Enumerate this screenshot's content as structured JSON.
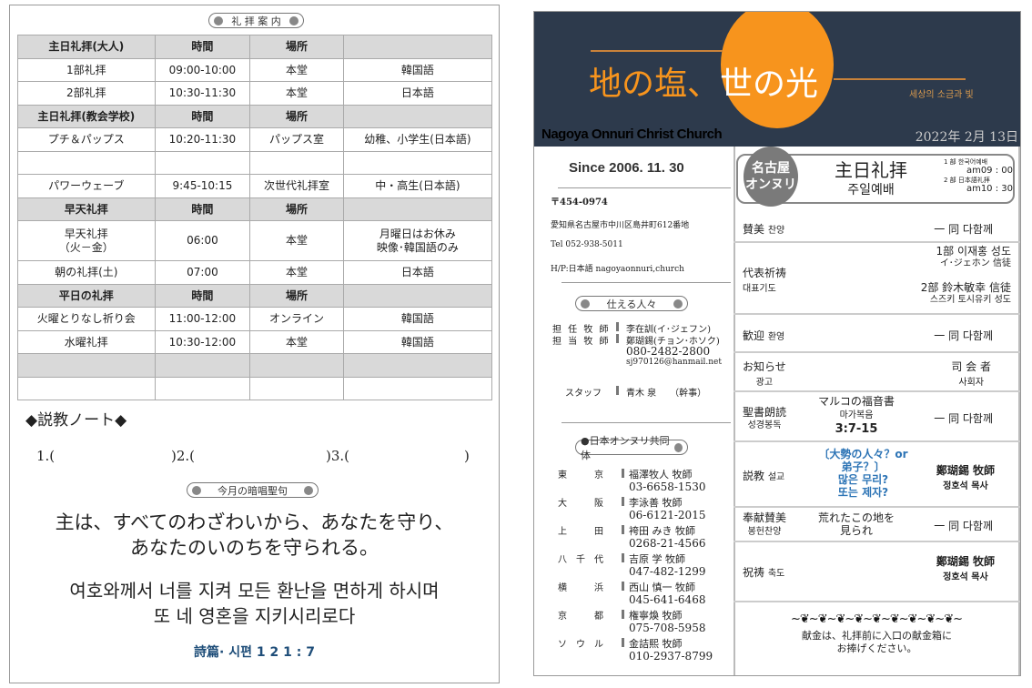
{
  "left": {
    "guide_title": "礼 拝 案 内",
    "schedule": [
      {
        "type": "hd",
        "cells": [
          "主日礼拝(大人)",
          "時間",
          "場所",
          ""
        ]
      },
      {
        "type": "",
        "cells": [
          "1部礼拝",
          "09:00-10:00",
          "本堂",
          "韓国語"
        ]
      },
      {
        "type": "",
        "cells": [
          "2部礼拝",
          "10:30-11:30",
          "本堂",
          "日本語"
        ]
      },
      {
        "type": "hd",
        "cells": [
          "主日礼拝(教会学校)",
          "時間",
          "場所",
          ""
        ]
      },
      {
        "type": "",
        "cells": [
          "プチ＆パップス",
          "10:20-11:30",
          "パップス室",
          "幼稚、小学生(日本語)"
        ]
      },
      {
        "type": "",
        "cells": [
          "",
          "",
          "",
          ""
        ]
      },
      {
        "type": "",
        "cells": [
          "パワーウェーブ",
          "9:45-10:15",
          "次世代礼拝室",
          "中・高生(日本語)"
        ]
      },
      {
        "type": "hd",
        "cells": [
          "早天礼拝",
          "時間",
          "場所",
          ""
        ]
      },
      {
        "type": "tall",
        "cells": [
          "早天礼拝\n（火－金）",
          "06:00",
          "本堂",
          "月曜日はお休み\n映像･韓国語のみ"
        ]
      },
      {
        "type": "",
        "cells": [
          "朝の礼拝(土)",
          "07:00",
          "本堂",
          "日本語"
        ]
      },
      {
        "type": "hd",
        "cells": [
          "平日の礼拝",
          "時間",
          "場所",
          ""
        ]
      },
      {
        "type": "",
        "cells": [
          "火曜とりなし祈り会",
          "11:00-12:00",
          "オンライン",
          "韓国語"
        ]
      },
      {
        "type": "",
        "cells": [
          "水曜礼拝",
          "10:30-12:00",
          "本堂",
          "韓国語"
        ]
      },
      {
        "type": "gray",
        "cells": [
          "",
          "",
          "",
          ""
        ]
      },
      {
        "type": "",
        "cells": [
          "",
          "",
          "",
          ""
        ]
      }
    ],
    "sermon_note_title": "◆説教ノート◆",
    "note_blanks": [
      "1.(",
      ")2.(",
      ")3.(",
      ")"
    ],
    "memory_verse_title": "今月の暗唱聖句",
    "verse_ja": [
      "主は、すべてのわざわいから、あなたを守り、",
      "あなたのいのちを守られる。"
    ],
    "verse_ko": [
      "여호와께서 너를 지켜 모든 환난을 면하게 하시며",
      "또 네 영혼을 지키시리로다"
    ],
    "verse_ref": "詩篇· 시편  1 2 1 : 7",
    "verse_ref_color": "#1f4e79"
  },
  "right": {
    "banner": {
      "title_part1": "地の塩、",
      "title_part2": "世の",
      "title_part3": "光",
      "subtitle_ko": "세상의 소금과 빛",
      "church_name": "Nagoya Onnuri Christ Church",
      "date": "2022年 2月 13日",
      "bg_color": "#2d3a4c",
      "accent_color": "#f7941d"
    },
    "since": "Since 2006. 11. 30",
    "postal": "〒454-0974",
    "address": "愛知県名古屋市中川区島井町612番地",
    "tel": "Tel  052-938-5011",
    "homepage": "H/P:日本語   nagoyaonnuri,church",
    "servants_title": "仕える人々",
    "servants": [
      {
        "role": "担 任 牧 師",
        "lines": [
          "李在訓(イ･ジェフン)"
        ]
      },
      {
        "role": "担 当 牧 師",
        "lines": [
          "鄭瑚錫(チョン･ホソク)",
          "080-2482-2800",
          "sj970126@hanmail.net"
        ]
      },
      {
        "role": "スタッフ",
        "lines": [
          "青木 泉　　（幹事）"
        ]
      }
    ],
    "community_title": "●日本オンヌリ共同体",
    "community": [
      {
        "city": "東　　　京",
        "pastor": "福澤牧人 牧師",
        "phone": "03-6658-1530"
      },
      {
        "city": "大　　　阪",
        "pastor": "李泳善 牧師",
        "phone": "06-6121-2015"
      },
      {
        "city": "上　　　田",
        "pastor": "袴田 みき 牧師",
        "phone": "0268-21-4566"
      },
      {
        "city": "八　千　代",
        "pastor": "吉原 学 牧師",
        "phone": "047-482-1299"
      },
      {
        "city": "横　　　浜",
        "pastor": "西山 慎一 牧師",
        "phone": "045-641-6468"
      },
      {
        "city": "京　　　都",
        "pastor": "権寧煥 牧師",
        "phone": "075-708-5958"
      },
      {
        "city": "ソ　ウ　ル",
        "pastor": "金詰熙 牧師",
        "phone": "010-2937-8799"
      }
    ],
    "service_header": {
      "badge": [
        "名古屋",
        "オンヌリ"
      ],
      "title_ja": "主日礼拝",
      "title_ko": "주일예배",
      "part1_label": "1 部 한국어예배",
      "part1_time": "am09 : 00",
      "part2_label": "2 部 日本語礼拝",
      "part2_time": "am10 : 30"
    },
    "order": {
      "praise": {
        "ja": "賛美",
        "ko": "찬양",
        "right": "一 同 다함께"
      },
      "prayer": {
        "ja": "代表祈祷",
        "ko": "대표기도",
        "p1": "1部 이재홍 성도",
        "p1_sub": "イ･ジェホン 信徒",
        "p2": "2部 鈴木敏幸 信徒",
        "p2_sub": "스즈키 토시유키 성도"
      },
      "welcome": {
        "ja": "歓迎",
        "ko": "환영",
        "right": "一 同 다함께"
      },
      "news": {
        "ja": "お知らせ",
        "ko": "광고",
        "right": "司 会 者",
        "right_sub": "사회자"
      },
      "reading": {
        "ja": "聖書朗読",
        "ko": "성경봉독",
        "book_ja": "マルコの福音書",
        "book_ko": "마가복음",
        "verse": "3:7-15",
        "right": "一 同 다함께"
      },
      "sermon": {
        "ja": "説教",
        "ko": "설교",
        "title": [
          "〔大勢の人々？or",
          "弟子？〕",
          "많은 무리?",
          "또는 제자?"
        ],
        "title_color": "#2e75b6",
        "right": "鄭瑚錫  牧師",
        "right_sub": "정호석 목사"
      },
      "offering": {
        "ja": "奉献賛美",
        "ko": "봉헌찬양",
        "song": [
          "荒れたこの地を",
          "見られ"
        ],
        "right": "一 同 다함께"
      },
      "benediction": {
        "ja": "祝祷",
        "ko": "축도",
        "right": "鄭瑚錫  牧師",
        "right_sub": "정호석 목사"
      }
    },
    "offering_note": [
      "献金は、礼拝前に入口の献金箱に",
      "お捧げください。"
    ]
  }
}
